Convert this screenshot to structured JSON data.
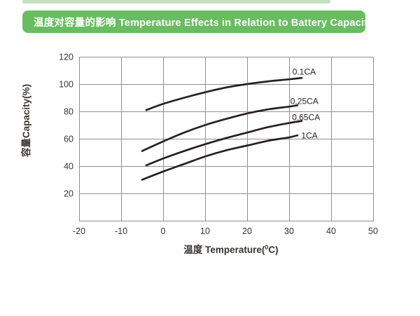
{
  "header": {
    "title": "温度对容量的影响 Temperature Effects in Relation to Battery Capacity",
    "banner_color": "#68bd60",
    "accent_strip_color": "#c5e2c0",
    "text_color": "#ffffff"
  },
  "chart_data": {
    "type": "line",
    "title": "",
    "xlabel": "温度 Temperature(⁰C)",
    "xlabel_parts": {
      "pre": "温度 Temperature(",
      "sup": "0",
      "post": "C)"
    },
    "ylabel": "容量Capacity(%)",
    "xlim": [
      -20,
      50
    ],
    "ylim": [
      0,
      120
    ],
    "x_ticks": [
      -20,
      -10,
      0,
      10,
      20,
      30,
      40,
      50
    ],
    "y_ticks_labeled": [
      20,
      40,
      60,
      80,
      100,
      120
    ],
    "grid": true,
    "legend_position": "end-of-line-labels",
    "line_color": "#262120",
    "grid_color": "#8f8f8f",
    "text_color": "#383431",
    "series": [
      {
        "name": "0.1CA",
        "points": [
          [
            -4,
            81
          ],
          [
            0,
            85.5
          ],
          [
            5,
            90
          ],
          [
            10,
            94
          ],
          [
            15,
            97.5
          ],
          [
            20,
            100
          ],
          [
            25,
            102
          ],
          [
            30,
            103.5
          ],
          [
            33,
            104.5
          ]
        ],
        "label_pos": [
          30.8,
          107
        ]
      },
      {
        "name": "0.25CA",
        "points": [
          [
            -5,
            51
          ],
          [
            0,
            58
          ],
          [
            5,
            64.5
          ],
          [
            10,
            70
          ],
          [
            15,
            74.5
          ],
          [
            20,
            78.5
          ],
          [
            25,
            81.5
          ],
          [
            30,
            83.5
          ],
          [
            32,
            84.5
          ]
        ],
        "label_pos": [
          30.3,
          85.5
        ]
      },
      {
        "name": "0.65CA",
        "points": [
          [
            -4,
            40.5
          ],
          [
            0,
            45.5
          ],
          [
            5,
            51
          ],
          [
            10,
            56
          ],
          [
            15,
            60.5
          ],
          [
            20,
            64.5
          ],
          [
            25,
            68.5
          ],
          [
            30,
            71.5
          ],
          [
            33,
            73
          ]
        ],
        "label_pos": [
          30.7,
          73.5
        ]
      },
      {
        "name": "1CA",
        "points": [
          [
            -5,
            30
          ],
          [
            0,
            36
          ],
          [
            5,
            41.5
          ],
          [
            10,
            47
          ],
          [
            15,
            51.5
          ],
          [
            20,
            55
          ],
          [
            25,
            58.5
          ],
          [
            30,
            61
          ],
          [
            32,
            62.5
          ]
        ],
        "label_pos": [
          32.9,
          60.3
        ]
      }
    ]
  }
}
